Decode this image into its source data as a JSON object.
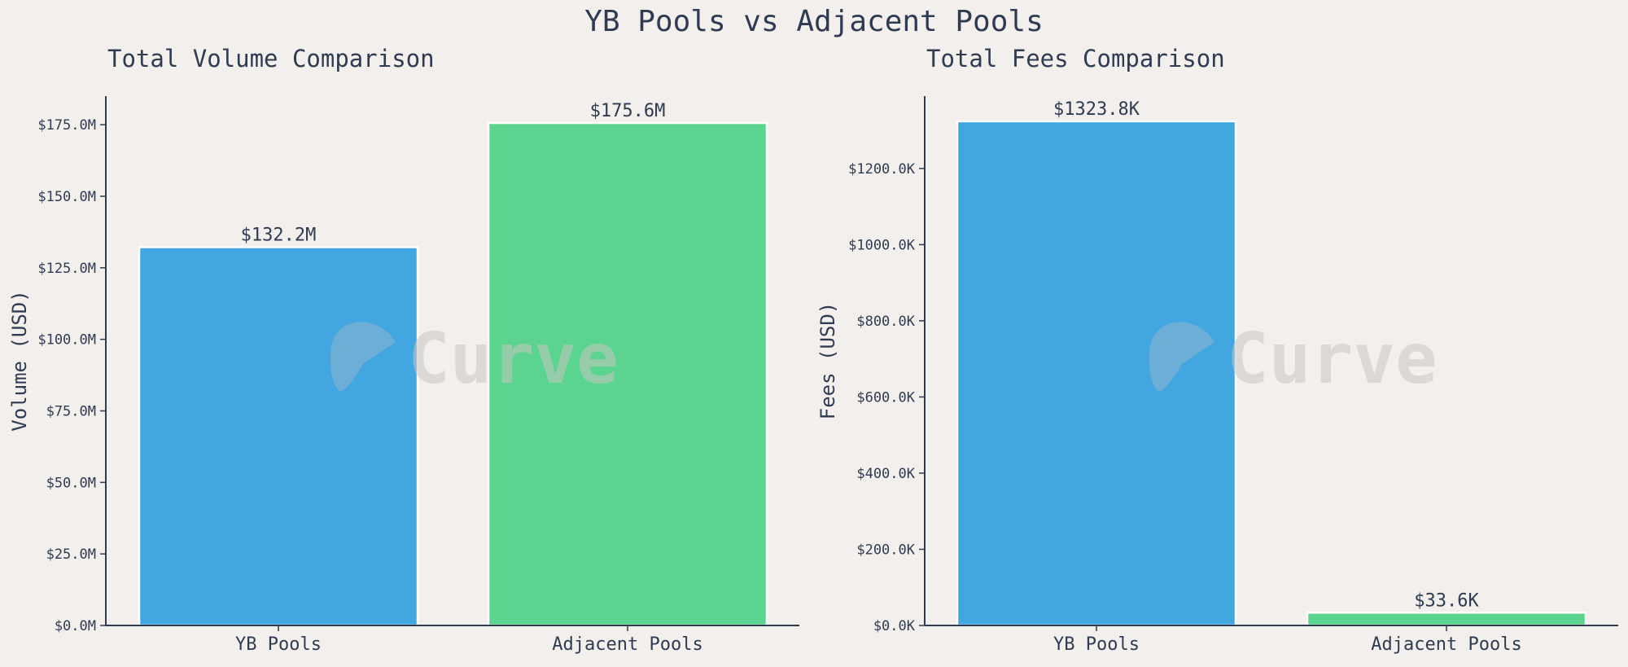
{
  "figure": {
    "suptitle": "YB Pools vs Adjacent Pools",
    "watermark_text": "Curve",
    "watermark_icon": "curve-logo-icon"
  },
  "colors": {
    "background": "#f2efec",
    "axis": "#2f3b52",
    "text": "#2f3b52",
    "yb": "#42a6e0",
    "adjacent": "#5ad48f",
    "watermark": "#c9c6c3"
  },
  "chart_data": [
    {
      "type": "bar",
      "title": "Total Volume Comparison",
      "xlabel": "",
      "ylabel": "Volume (USD)",
      "categories": [
        "YB Pools",
        "Adjacent Pools"
      ],
      "values": [
        132.2,
        175.6
      ],
      "value_unit": "M",
      "data_labels": [
        "$132.2M",
        "$175.6M"
      ],
      "ylim": [
        0,
        185
      ],
      "yticks": [
        0,
        25,
        50,
        75,
        100,
        125,
        150,
        175
      ],
      "ytick_labels": [
        "$0.0M",
        "$25.0M",
        "$50.0M",
        "$75.0M",
        "$100.0M",
        "$125.0M",
        "$150.0M",
        "$175.0M"
      ],
      "grid": false,
      "legend": "none"
    },
    {
      "type": "bar",
      "title": "Total Fees Comparison",
      "xlabel": "",
      "ylabel": "Fees (USD)",
      "categories": [
        "YB Pools",
        "Adjacent Pools"
      ],
      "values": [
        1323.8,
        33.6
      ],
      "value_unit": "K",
      "data_labels": [
        "$1323.8K",
        "$33.6K"
      ],
      "ylim": [
        0,
        1390
      ],
      "yticks": [
        0,
        200,
        400,
        600,
        800,
        1000,
        1200
      ],
      "ytick_labels": [
        "$0.0K",
        "$200.0K",
        "$400.0K",
        "$600.0K",
        "$800.0K",
        "$1000.0K",
        "$1200.0K"
      ],
      "grid": false,
      "legend": "none"
    }
  ]
}
